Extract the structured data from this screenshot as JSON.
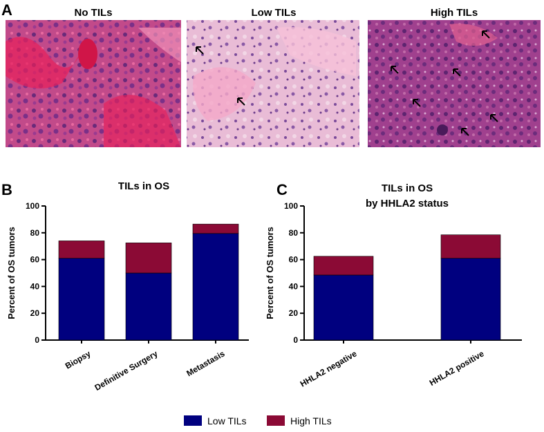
{
  "panel_a": {
    "letter": "A",
    "images": [
      {
        "title": "No TILs"
      },
      {
        "title": "Low TILs"
      },
      {
        "title": "High TILs"
      }
    ]
  },
  "panel_b": {
    "letter": "B"
  },
  "panel_c": {
    "letter": "C"
  },
  "legend": {
    "items": [
      {
        "label": "Low TILs",
        "color": "#00007f"
      },
      {
        "label": "High TILs",
        "color": "#8b0a35"
      }
    ]
  },
  "chart_data": [
    {
      "type": "bar",
      "stacked": true,
      "title": "TILs in OS",
      "xlabel": "",
      "ylabel": "Percent of OS tumors",
      "ylim": [
        0,
        100
      ],
      "yticks": [
        "0",
        "20",
        "40",
        "60",
        "80",
        "100"
      ],
      "categories": [
        "Biopsy",
        "Definitive Surgery",
        "Metastasis"
      ],
      "series": [
        {
          "name": "Low TILs",
          "values": [
            61,
            50,
            79.5
          ]
        },
        {
          "name": "High TILs",
          "values": [
            13,
            22.5,
            7
          ]
        }
      ]
    },
    {
      "type": "bar",
      "stacked": true,
      "title_lines": [
        "TILs in OS",
        "by HHLA2 status"
      ],
      "xlabel": "",
      "ylabel": "Percent of OS tumors",
      "ylim": [
        0,
        100
      ],
      "yticks": [
        "0",
        "20",
        "40",
        "60",
        "80",
        "100"
      ],
      "categories": [
        "HHLA2 negative",
        "HHLA2 positive"
      ],
      "series": [
        {
          "name": "Low TILs",
          "values": [
            48.5,
            61
          ]
        },
        {
          "name": "High TILs",
          "values": [
            14,
            17.5
          ]
        }
      ]
    }
  ]
}
